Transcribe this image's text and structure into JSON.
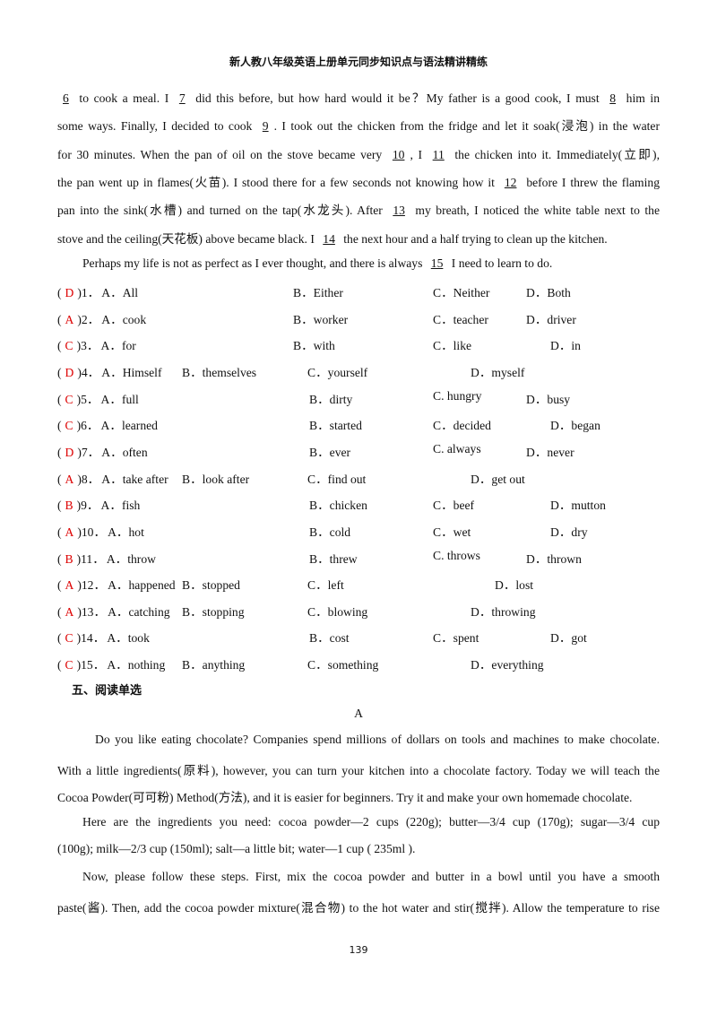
{
  "header": {
    "title": "新人教八年级英语上册单元同步知识点与语法精讲精练"
  },
  "cloze": {
    "paragraphs": [
      [
        [
          {
            "blank": "6"
          },
          " to cook a meal. I ",
          {
            "blank": "7"
          },
          " did this before, but how hard would it be？My father is a good cook, I must ",
          {
            "blank": "8"
          },
          " him in"
        ],
        [
          "some ways. Finally, I decided to cook ",
          {
            "blank": "9"
          },
          ". I took out the chicken from the fridge and let it soak(浸泡) in the water"
        ],
        [
          "for 30 minutes. When the pan of oil on the stove became very ",
          {
            "blank": "10"
          },
          ", I ",
          {
            "blank": "11"
          },
          " the chicken into it. Immediately(立即),"
        ],
        [
          "the pan went up in flames(火苗). I stood there for a few seconds not knowing how it ",
          {
            "blank": "12"
          },
          " before I threw the flaming"
        ],
        [
          "pan into the sink(水槽) and turned on the tap(水龙头). After ",
          {
            "blank": "13"
          },
          " my breath, I noticed the white table next to the"
        ],
        [
          "stove and the ceiling(天花板) above became black. I ",
          {
            "blank": "14"
          },
          " the next hour and a half trying to clean up the kitchen."
        ]
      ],
      [
        [
          "Perhaps my life is not as perfect as I ever thought, and there is always ",
          {
            "blank": "15"
          },
          " I need to learn to do."
        ]
      ]
    ]
  },
  "questions": [
    {
      "open": "(",
      "answer": "D",
      "number": ")1．",
      "options": [
        "A．All",
        "B．Either",
        "C．Neither",
        "D．Both"
      ]
    },
    {
      "open": "(",
      "answer": "A",
      "number": ")2．",
      "options": [
        "A．cook",
        "B．worker",
        "C．teacher",
        "D．driver"
      ]
    },
    {
      "open": "(",
      "answer": "C",
      "number": ")3．",
      "options": [
        "A．for",
        "B．with",
        "C．like",
        "D．in"
      ]
    },
    {
      "open": "(",
      "answer": "D",
      "number": ")4．",
      "options": [
        "A．Himself",
        "B．themselves",
        "C．yourself",
        "D．myself"
      ]
    },
    {
      "open": "(",
      "answer": "C",
      "number": ")5．",
      "options": [
        "A．full",
        "B．dirty",
        "C. hungry",
        "D．busy"
      ]
    },
    {
      "open": "(",
      "answer": "C",
      "number": ")6．",
      "options": [
        "A．learned",
        "B．started",
        "C．decided",
        "D．began"
      ]
    },
    {
      "open": "(",
      "answer": "D",
      "number": ")7．",
      "options": [
        "A．often",
        "B．ever",
        "C. always",
        "D．never"
      ]
    },
    {
      "open": "(",
      "answer": "A",
      "number": ")8．",
      "options": [
        "A．take after",
        "B．look after",
        "C．find out",
        "D．get out"
      ]
    },
    {
      "open": "(",
      "answer": "B",
      "number": ")9．",
      "options": [
        "A．fish",
        "B．chicken",
        "C．beef",
        "D．mutton"
      ]
    },
    {
      "open": "(",
      "answer": "A",
      "number": ")10．",
      "options": [
        "A．hot",
        "B．cold",
        "C．wet",
        "D．dry"
      ]
    },
    {
      "open": "(",
      "answer": "B",
      "number": ")11．",
      "options": [
        "A．throw",
        "B．threw",
        "C. throws",
        "D．thrown"
      ]
    },
    {
      "open": "(",
      "answer": "A",
      "number": ")12．",
      "options": [
        "A．happened",
        "B．stopped",
        "C．left",
        "D．lost"
      ]
    },
    {
      "open": "(",
      "answer": "A",
      "number": ")13．",
      "options": [
        "A．catching",
        "B．stopping",
        "C．blowing",
        "D．throwing"
      ]
    },
    {
      "open": "(",
      "answer": "C",
      "number": ")14．",
      "options": [
        "A．took",
        "B．cost",
        "C．spent",
        "D．got"
      ]
    },
    {
      "open": "(",
      "answer": "C",
      "number": ")15．",
      "options": [
        "A．nothing",
        "B．anything",
        "C．something",
        "D．everything"
      ]
    }
  ],
  "section": {
    "heading": "五、阅读单选",
    "passage_title": "A",
    "paragraphs": [
      [
        "Do you like eating chocolate? Companies spend millions of dollars on tools and machines to make chocolate.",
        "With a little ingredients(原料), however, you can turn your kitchen into a chocolate factory. Today we will teach the",
        "Cocoa Powder(可可粉) Method(方法), and it is easier for beginners. Try it and make your own homemade chocolate."
      ],
      [
        "Here are the ingredients you need: cocoa powder—2 cups (220g); butter—3/4 cup (170g); sugar—3/4 cup",
        "(100g); milk—2/3 cup (150ml); salt—a little bit; water—1 cup ( 235ml )."
      ],
      [
        "Now, please follow these steps. First, mix the cocoa powder and butter in a bowl until you have a smooth",
        "paste(酱). Then, add the cocoa powder mixture(混合物) to the hot water and stir(搅拌). Allow the temperature to rise"
      ]
    ]
  },
  "page_number": "139"
}
